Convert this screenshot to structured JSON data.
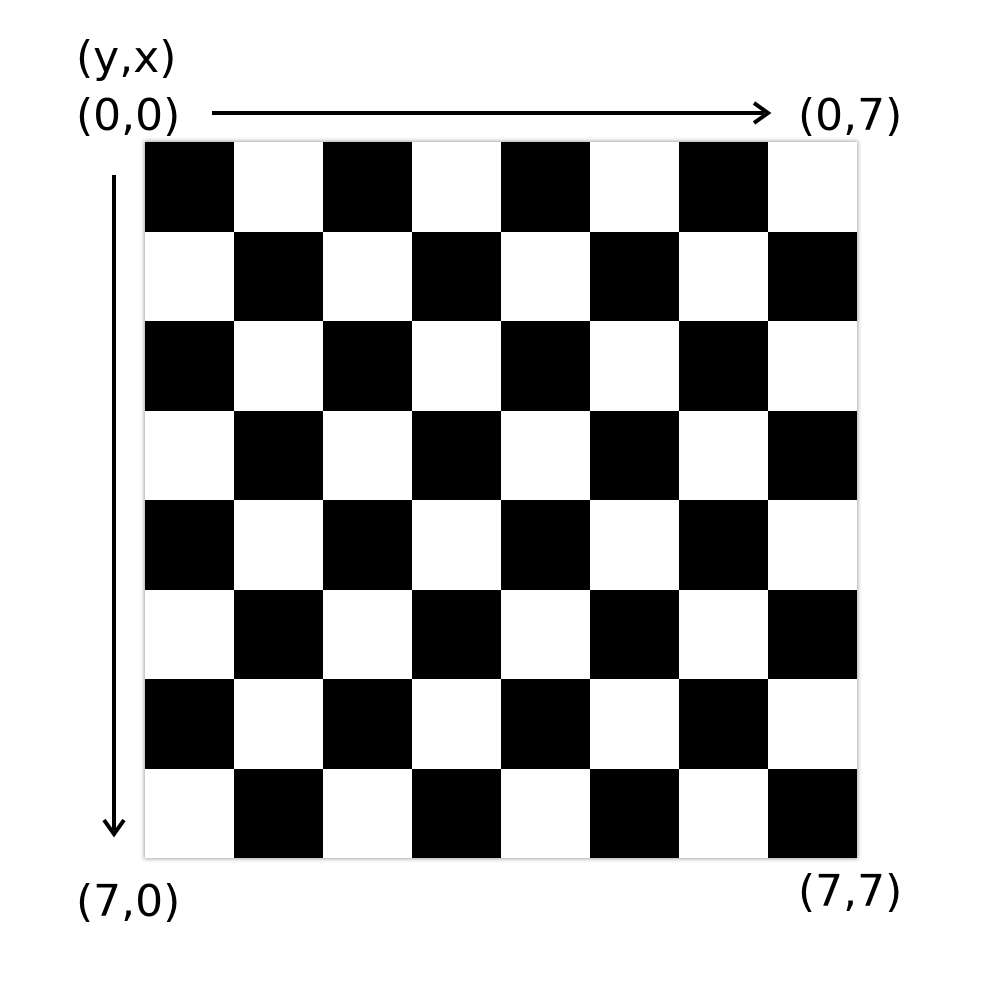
{
  "labels": {
    "axis_order": "(y,x)",
    "top_left": "(0,0)",
    "top_right": "(0,7)",
    "bottom_left": "(7,0)",
    "bottom_right": "(7,7)"
  },
  "board": {
    "rows": 8,
    "cols": 8,
    "dark_color": "#000000",
    "light_color": "#ffffff",
    "top_left_cell": "dark"
  },
  "arrows": {
    "x_direction": "right",
    "y_direction": "down",
    "color": "#000000"
  }
}
